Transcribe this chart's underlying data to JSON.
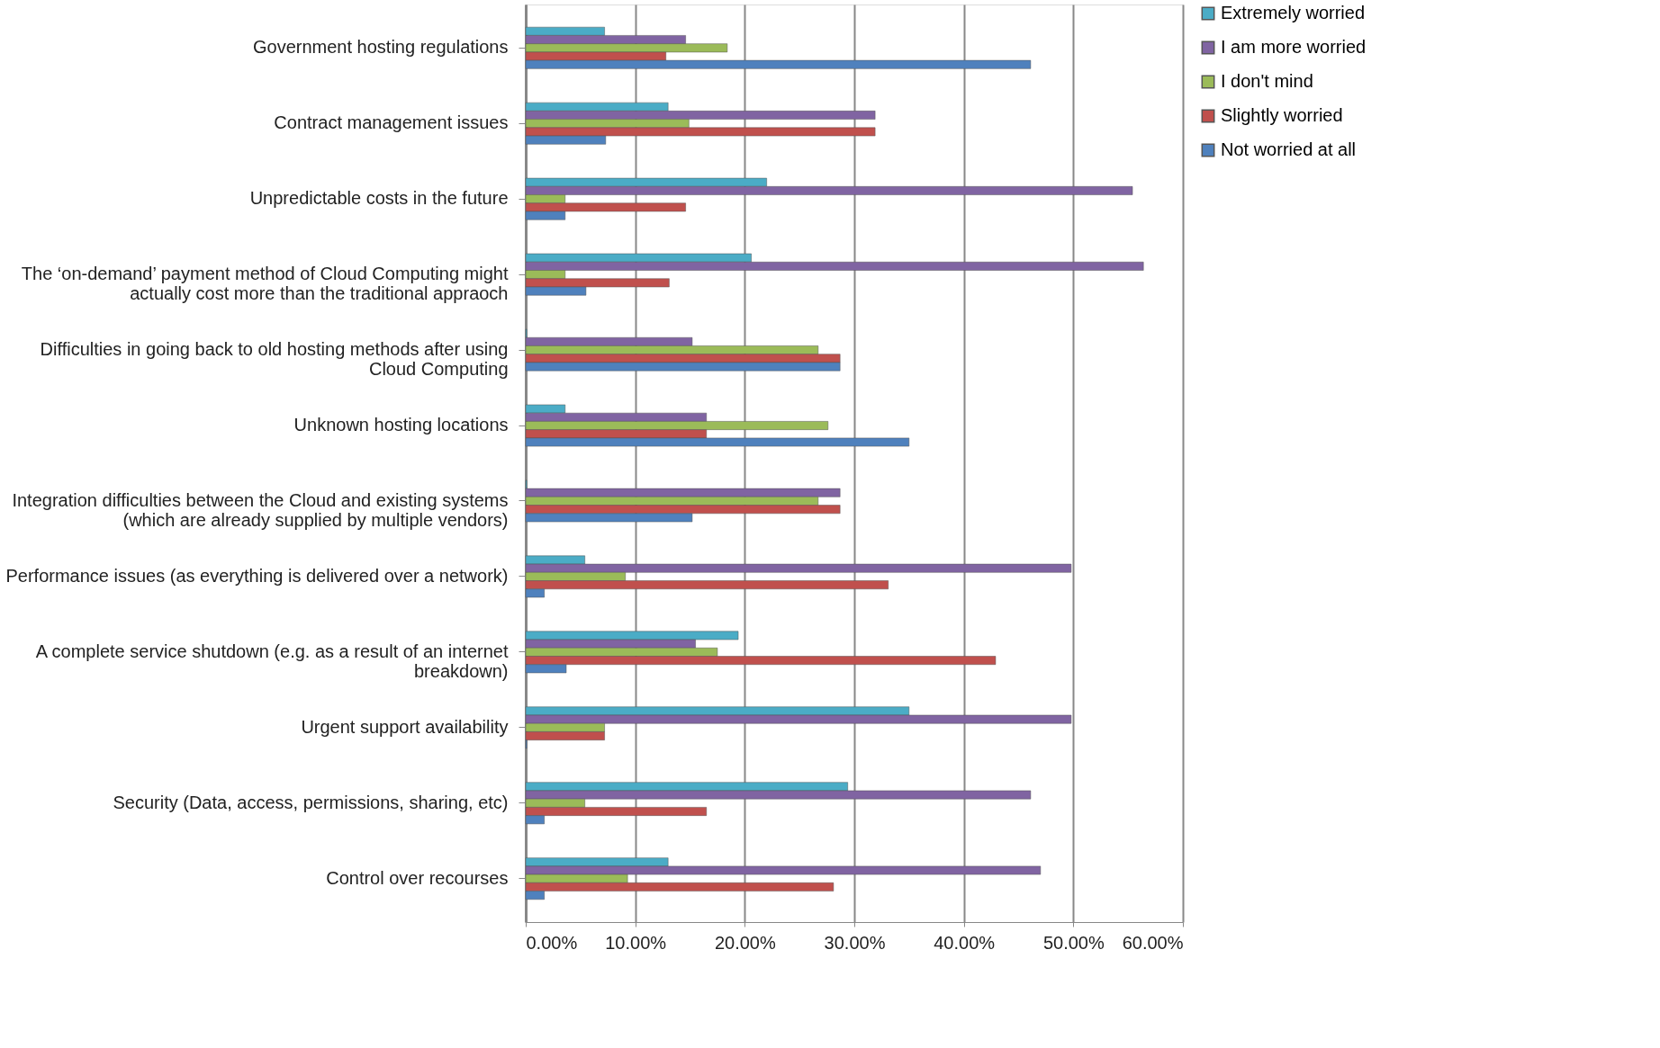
{
  "chart_data": {
    "type": "bar",
    "orientation": "horizontal",
    "categories": [
      "Government hosting regulations",
      "Contract management issues",
      "Unpredictable costs in the future",
      "The ‘on-demand’ payment method of Cloud Computing might actually cost more than the traditional appraoch",
      "Difficulties in going back to old hosting methods after using Cloud Computing",
      "Unknown hosting locations",
      "Integration difficulties between the Cloud and existing systems (which are already supplied by multiple vendors)",
      "Performance issues (as everything is delivered over a network)",
      "A complete service shutdown (e.g. as a result of an internet breakdown)",
      "Urgent support availability",
      "Security (Data, access, permissions, sharing, etc)",
      "Control over recourses"
    ],
    "series": [
      {
        "name": "Extremely worried",
        "color": "#4bacc6",
        "values": [
          7.2,
          13.0,
          22.0,
          20.6,
          0.1,
          3.6,
          0.1,
          5.4,
          19.4,
          35.0,
          29.4,
          13.0
        ]
      },
      {
        "name": "I am more worried",
        "color": "#8064a2",
        "values": [
          14.6,
          31.9,
          55.4,
          56.4,
          15.2,
          16.5,
          28.7,
          49.8,
          15.5,
          49.8,
          46.1,
          47.0
        ]
      },
      {
        "name": "I don't mind",
        "color": "#9bbb59",
        "values": [
          18.4,
          14.9,
          3.6,
          3.6,
          26.7,
          27.6,
          26.7,
          9.1,
          17.5,
          7.2,
          5.4,
          9.3
        ]
      },
      {
        "name": "Slightly worried",
        "color": "#c0504d",
        "values": [
          12.8,
          31.9,
          14.6,
          13.1,
          28.7,
          16.5,
          28.7,
          33.1,
          42.9,
          7.2,
          16.5,
          28.1
        ]
      },
      {
        "name": "Not worried at all",
        "color": "#4f81bd",
        "values": [
          46.1,
          7.3,
          3.6,
          5.5,
          28.7,
          35.0,
          15.2,
          1.7,
          3.7,
          0.1,
          1.7,
          1.7
        ]
      }
    ],
    "xlim": [
      0,
      60
    ],
    "xticks": [
      {
        "value": 0,
        "label": "0.00%"
      },
      {
        "value": 10,
        "label": "10.00%"
      },
      {
        "value": 20,
        "label": "20.00%"
      },
      {
        "value": 30,
        "label": "30.00%"
      },
      {
        "value": 40,
        "label": "40.00%"
      },
      {
        "value": 50,
        "label": "50.00%"
      },
      {
        "value": 60,
        "label": "60.00%"
      }
    ],
    "grid": "x",
    "legend": "right"
  }
}
